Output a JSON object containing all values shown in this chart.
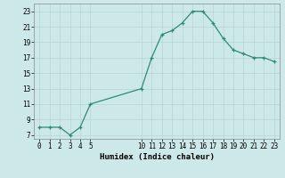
{
  "x": [
    0,
    1,
    2,
    3,
    4,
    5,
    10,
    11,
    12,
    13,
    14,
    15,
    16,
    17,
    18,
    19,
    20,
    21,
    22,
    23
  ],
  "y": [
    8.0,
    8.0,
    8.0,
    7.0,
    8.0,
    11.0,
    13.0,
    17.0,
    20.0,
    20.5,
    21.5,
    23.0,
    23.0,
    21.5,
    19.5,
    18.0,
    17.5,
    17.0,
    17.0,
    16.5
  ],
  "xlabel": "Humidex (Indice chaleur)",
  "xlim": [
    -0.5,
    23.5
  ],
  "ylim": [
    6.5,
    24.0
  ],
  "yticks": [
    7,
    9,
    11,
    13,
    15,
    17,
    19,
    21,
    23
  ],
  "xticks": [
    0,
    1,
    2,
    3,
    4,
    5,
    10,
    11,
    12,
    13,
    14,
    15,
    16,
    17,
    18,
    19,
    20,
    21,
    22,
    23
  ],
  "line_color": "#2e8b7a",
  "bg_color": "#cde8e8",
  "grid_color": "#b8d8d8",
  "tick_fontsize": 5.5,
  "xlabel_fontsize": 6.5
}
